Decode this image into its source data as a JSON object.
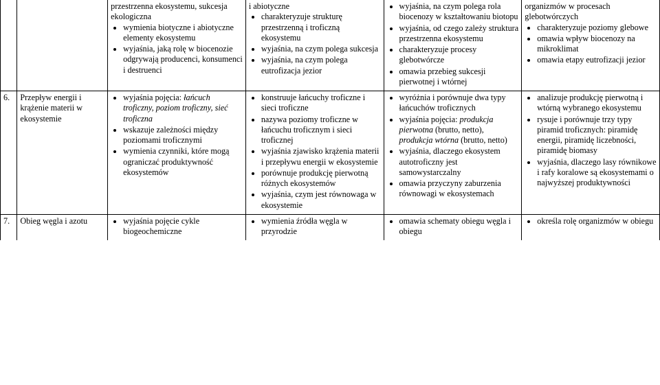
{
  "row1": {
    "colA": [
      "przestrzenna ekosystemu, sukcesja ekologiczna",
      "wymienia biotyczne i abiotyczne elementy ekosystemu",
      "wyjaśnia, jaką rolę w biocenozie odgrywają producenci, konsumenci i destruenci"
    ],
    "colB": [
      "i abiotyczne",
      "charakteryzuje strukturę przestrzenną i troficzną ekosystemu",
      "wyjaśnia, na czym polega sukcesja",
      "wyjaśnia, na czym polega eutrofizacja jezior"
    ],
    "colC": [
      "wyjaśnia, na czym polega rola biocenozy w kształtowaniu biotopu",
      "wyjaśnia, od czego zależy struktura przestrzenna ekosystemu",
      "charakteryzuje procesy glebotwórcze",
      "omawia przebieg sukcesji pierwotnej i wtórnej"
    ],
    "colD": [
      "organizmów w procesach glebotwórczych",
      "charakteryzuje poziomy glebowe",
      "omawia wpływ biocenozy na mikroklimat",
      "omawia etapy eutrofizacji jezior"
    ]
  },
  "row2": {
    "num": "6.",
    "topic": "Przepływ energii i krążenie materii w ekosystemie",
    "colA": [
      "wyjaśnia pojęcia: <em class=\"i\">łańcuch troficzny, poziom troficzny, sieć troficzna</em>",
      "wskazuje zależności między poziomami troficznymi",
      "wymienia czynniki, które mogą ograniczać produktywność ekosystemów"
    ],
    "colB": [
      "konstruuje łańcuchy troficzne i sieci troficzne",
      "nazywa poziomy troficzne w łańcuchu troficznym i sieci troficznej",
      "wyjaśnia zjawisko krążenia materii i przepływu energii w ekosystemie",
      "porównuje produkcję pierwotną różnych ekosystemów",
      "wyjaśnia, czym jest równowaga w ekosystemie"
    ],
    "colC": [
      "wyróżnia i porównuje dwa typy łańcuchów troficznych",
      "wyjaśnia pojęcia: <em class=\"i\">produkcja pierwotna</em> (brutto, netto), <em class=\"i\">produkcja wtórna</em> (brutto, netto)",
      "wyjaśnia, dlaczego ekosystem autotroficzny jest samowystarczalny",
      "omawia przyczyny zaburzenia równowagi w ekosystemach"
    ],
    "colD": [
      "analizuje produkcję pierwotną i wtórną wybranego ekosystemu",
      "rysuje i porównuje trzy typy piramid troficznych: piramidę energii, piramidę liczebności, piramidę biomasy",
      "wyjaśnia, dlaczego lasy równikowe i rafy koralowe są ekosystemami o najwyższej produktywności"
    ]
  },
  "row3": {
    "num": "7.",
    "topic": "Obieg węgla i azotu",
    "colA": [
      "wyjaśnia pojęcie cykle biogeochemiczne"
    ],
    "colB": [
      "wymienia źródła węgla w przyrodzie"
    ],
    "colC": [
      "omawia schematy obiegu węgla i obiegu"
    ],
    "colD": [
      "określa rolę organizmów w obiegu"
    ]
  }
}
